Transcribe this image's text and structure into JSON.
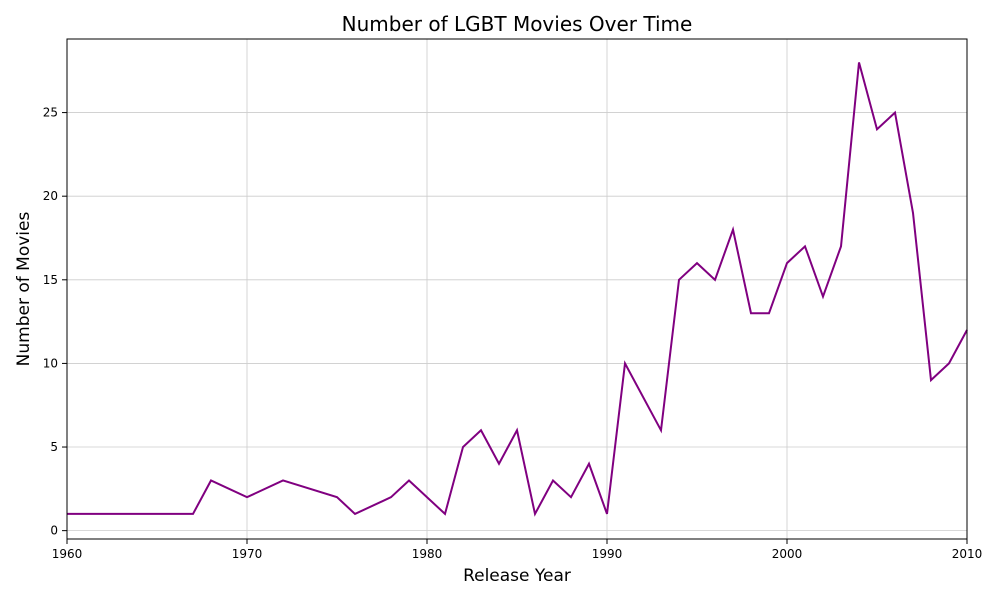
{
  "chart_data": {
    "type": "line",
    "title": "Number of LGBT Movies Over Time",
    "xlabel": "Release Year",
    "ylabel": "Number of Movies",
    "xlim": [
      1960,
      2010
    ],
    "ylim": [
      -0.5,
      29.4
    ],
    "xticks": [
      1960,
      1970,
      1980,
      1990,
      2000,
      2010
    ],
    "yticks": [
      0,
      5,
      10,
      15,
      20,
      25
    ],
    "grid": true,
    "line_color": "#800080",
    "series": [
      {
        "x": [
          1960,
          1967,
          1968,
          1970,
          1972,
          1975,
          1976,
          1978,
          1979,
          1981,
          1982,
          1983,
          1984,
          1985,
          1986,
          1987,
          1988,
          1989,
          1990,
          1991,
          1993,
          1994,
          1995,
          1996,
          1997,
          1998,
          1999,
          2000,
          2001,
          2002,
          2003,
          2004,
          2005,
          2006,
          2007,
          2008,
          2009,
          2010
        ],
        "y": [
          1,
          1,
          3,
          2,
          3,
          2,
          1,
          2,
          3,
          1,
          5,
          6,
          4,
          6,
          1,
          3,
          2,
          4,
          1,
          10,
          6,
          15,
          16,
          15,
          18,
          13,
          13,
          16,
          17,
          14,
          17,
          28,
          24,
          25,
          19,
          9,
          10,
          12
        ]
      }
    ]
  }
}
